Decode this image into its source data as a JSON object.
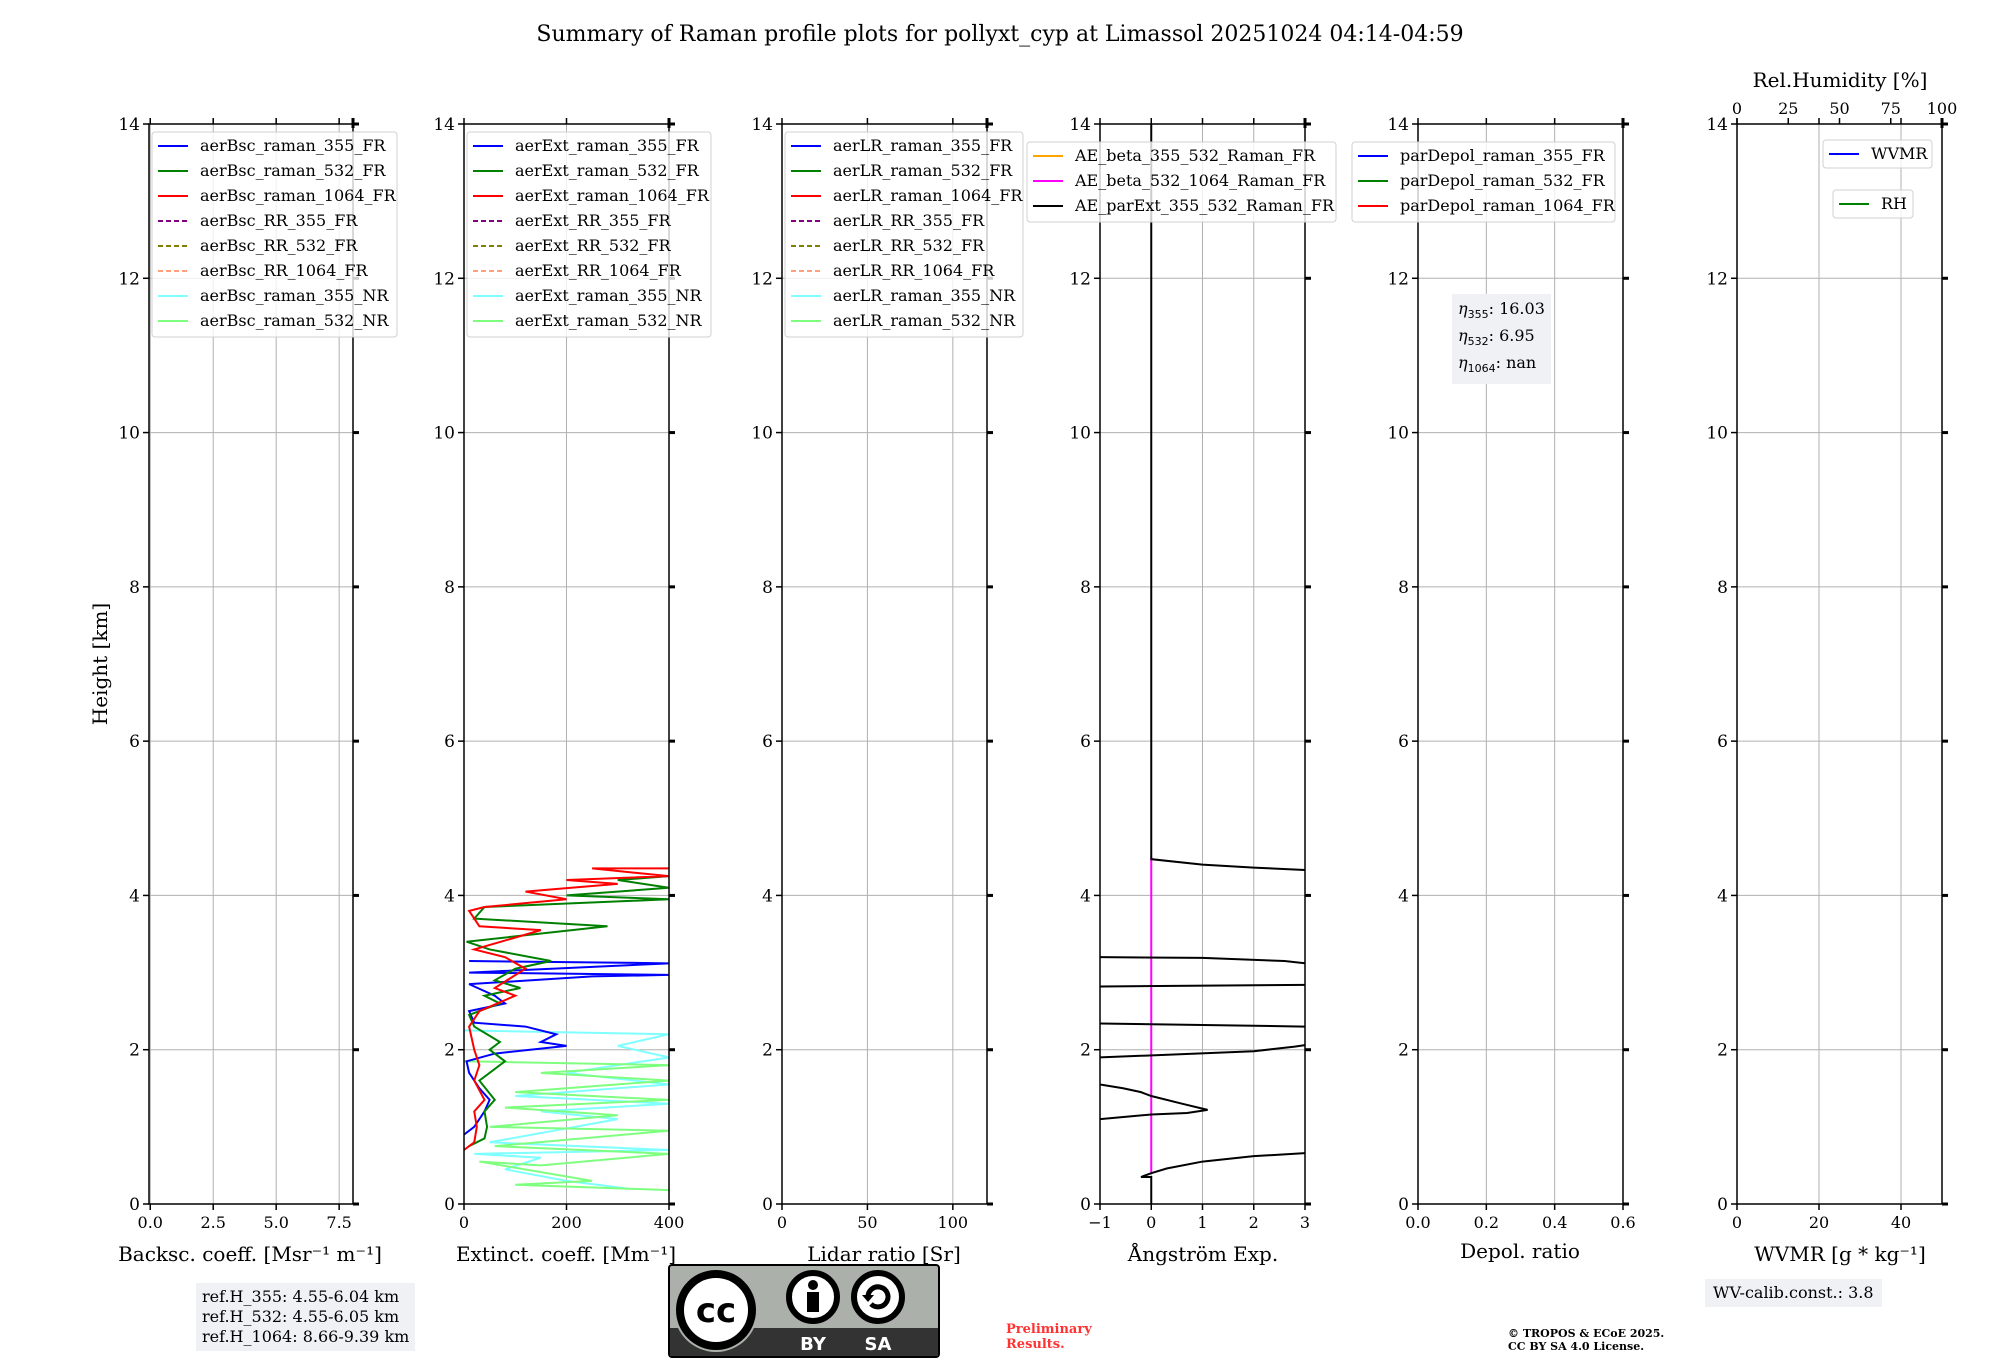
{
  "title": "Summary of Raman profile plots for pollyxt_cyp at Limassol 20251024 04:14-04:59",
  "ylabel": "Height [km]",
  "ref_heights": [
    "ref.H_355: 4.55-6.04 km",
    "ref.H_532: 4.55-6.05 km",
    "ref.H_1064: 8.66-9.39 km"
  ],
  "eta": [
    {
      "sub": "355",
      "value": ": 16.03"
    },
    {
      "sub": "532",
      "value": ": 6.95"
    },
    {
      "sub": "1064",
      "value": ": nan"
    }
  ],
  "eta_symbol": "η",
  "wv_calib": "WV-calib.const.: 3.8",
  "preliminary": [
    "Preliminary",
    "Results."
  ],
  "copyright": [
    "© TROPOS & ECoE 2025.",
    "CC BY SA 4.0 License."
  ],
  "license_logo": {
    "cc": "cc",
    "by": "BY",
    "sa": "SA"
  },
  "rh_axis": {
    "label": "Rel.Humidity [%]",
    "ticks": [
      0,
      25,
      50,
      75,
      100
    ],
    "lim": [
      0,
      100
    ]
  },
  "chart_data": [
    {
      "type": "line",
      "xlabel": "Backsc. coeff. [Msr⁻¹ m⁻¹]",
      "xlim": [
        -0.05,
        8.05
      ],
      "ylim": [
        0,
        14
      ],
      "xticks": [
        0,
        2.5,
        5,
        7.5
      ],
      "xticklabels": [
        "0.0",
        "2.5",
        "5.0",
        "7.5"
      ],
      "yticks": [
        0,
        2,
        4,
        6,
        8,
        10,
        12,
        14
      ],
      "grid": true,
      "legend": "upper-left",
      "legend_entries": [
        {
          "name": "aerBsc_raman_355_FR",
          "color": "#0000ff",
          "dash": false
        },
        {
          "name": "aerBsc_raman_532_FR",
          "color": "#008000",
          "dash": false
        },
        {
          "name": "aerBsc_raman_1064_FR",
          "color": "#ff0000",
          "dash": false
        },
        {
          "name": "aerBsc_RR_355_FR",
          "color": "#800080",
          "dash": true
        },
        {
          "name": "aerBsc_RR_532_FR",
          "color": "#808000",
          "dash": true
        },
        {
          "name": "aerBsc_RR_1064_FR",
          "color": "#ffa07a",
          "dash": true
        },
        {
          "name": "aerBsc_raman_355_NR",
          "color": "#7fffff",
          "dash": false
        },
        {
          "name": "aerBsc_raman_532_NR",
          "color": "#7fff7f",
          "dash": false
        }
      ],
      "series": []
    },
    {
      "type": "line",
      "xlabel": "Extinct. coeff. [Mm⁻¹]",
      "xlim": [
        0,
        400
      ],
      "ylim": [
        0,
        14
      ],
      "xticks": [
        0,
        200,
        400
      ],
      "xticklabels": [
        "0",
        "200",
        "400"
      ],
      "yticks": [
        0,
        2,
        4,
        6,
        8,
        10,
        12,
        14
      ],
      "grid": true,
      "legend": "upper-left",
      "legend_entries": [
        {
          "name": "aerExt_raman_355_FR",
          "color": "#0000ff",
          "dash": false
        },
        {
          "name": "aerExt_raman_532_FR",
          "color": "#008000",
          "dash": false
        },
        {
          "name": "aerExt_raman_1064_FR",
          "color": "#ff0000",
          "dash": false
        },
        {
          "name": "aerExt_RR_355_FR",
          "color": "#800080",
          "dash": true
        },
        {
          "name": "aerExt_RR_532_FR",
          "color": "#808000",
          "dash": true
        },
        {
          "name": "aerExt_RR_1064_FR",
          "color": "#ffa07a",
          "dash": true
        },
        {
          "name": "aerExt_raman_355_NR",
          "color": "#7fffff",
          "dash": false
        },
        {
          "name": "aerExt_raman_532_NR",
          "color": "#7fff7f",
          "dash": false
        }
      ],
      "series": [
        {
          "name": "aerExt_raman_355_NR",
          "color": "#7fffff",
          "points": [
            [
              320,
              0.2
            ],
            [
              200,
              0.3
            ],
            [
              80,
              0.45
            ],
            [
              150,
              0.6
            ],
            [
              20,
              0.65
            ],
            [
              400,
              0.7
            ],
            [
              50,
              0.8
            ],
            [
              300,
              1.1
            ],
            [
              150,
              1.2
            ],
            [
              400,
              1.3
            ],
            [
              100,
              1.4
            ],
            [
              400,
              1.55
            ],
            [
              200,
              1.7
            ],
            [
              400,
              1.9
            ],
            [
              300,
              2.05
            ],
            [
              400,
              2.2
            ],
            [
              0,
              2.25
            ]
          ]
        },
        {
          "name": "aerExt_raman_532_NR",
          "color": "#7fff7f",
          "points": [
            [
              400,
              0.18
            ],
            [
              100,
              0.25
            ],
            [
              250,
              0.3
            ],
            [
              30,
              0.55
            ],
            [
              150,
              0.5
            ],
            [
              400,
              0.65
            ],
            [
              60,
              0.75
            ],
            [
              400,
              0.95
            ],
            [
              50,
              1.0
            ],
            [
              300,
              1.15
            ],
            [
              80,
              1.25
            ],
            [
              400,
              1.35
            ],
            [
              100,
              1.45
            ],
            [
              400,
              1.6
            ],
            [
              150,
              1.7
            ],
            [
              400,
              1.8
            ],
            [
              0,
              1.85
            ]
          ]
        },
        {
          "name": "aerExt_raman_355_FR",
          "color": "#0000ff",
          "points": [
            [
              0,
              0.9
            ],
            [
              20,
              1.0
            ],
            [
              40,
              1.2
            ],
            [
              50,
              1.35
            ],
            [
              30,
              1.5
            ],
            [
              10,
              1.7
            ],
            [
              5,
              1.85
            ],
            [
              60,
              1.95
            ],
            [
              200,
              2.05
            ],
            [
              150,
              2.1
            ],
            [
              180,
              2.2
            ],
            [
              120,
              2.3
            ],
            [
              20,
              2.35
            ],
            [
              10,
              2.5
            ],
            [
              80,
              2.6
            ],
            [
              60,
              2.7
            ],
            [
              10,
              2.85
            ],
            [
              250,
              2.95
            ],
            [
              400,
              2.97
            ],
            [
              10,
              3.0
            ],
            [
              400,
              3.12
            ],
            [
              10,
              3.15
            ]
          ]
        },
        {
          "name": "aerExt_raman_532_FR",
          "color": "#008000",
          "points": [
            [
              10,
              0.75
            ],
            [
              40,
              0.85
            ],
            [
              45,
              1.0
            ],
            [
              40,
              1.2
            ],
            [
              60,
              1.35
            ],
            [
              30,
              1.6
            ],
            [
              80,
              1.85
            ],
            [
              50,
              2.0
            ],
            [
              70,
              2.1
            ],
            [
              20,
              2.3
            ],
            [
              10,
              2.45
            ],
            [
              70,
              2.6
            ],
            [
              40,
              2.7
            ],
            [
              110,
              2.8
            ],
            [
              60,
              2.9
            ],
            [
              100,
              3.05
            ],
            [
              170,
              3.15
            ],
            [
              50,
              3.3
            ],
            [
              5,
              3.4
            ],
            [
              280,
              3.6
            ],
            [
              20,
              3.7
            ],
            [
              40,
              3.85
            ],
            [
              400,
              3.95
            ],
            [
              200,
              4.0
            ],
            [
              400,
              4.1
            ],
            [
              300,
              4.2
            ],
            [
              400,
              4.25
            ]
          ]
        },
        {
          "name": "aerExt_raman_1064_FR",
          "color": "#ff0000",
          "points": [
            [
              0,
              0.7
            ],
            [
              20,
              0.8
            ],
            [
              25,
              1.0
            ],
            [
              20,
              1.2
            ],
            [
              40,
              1.35
            ],
            [
              20,
              1.6
            ],
            [
              30,
              1.8
            ],
            [
              20,
              2.0
            ],
            [
              10,
              2.3
            ],
            [
              30,
              2.5
            ],
            [
              100,
              2.7
            ],
            [
              60,
              2.8
            ],
            [
              120,
              3.05
            ],
            [
              80,
              3.2
            ],
            [
              20,
              3.3
            ],
            [
              150,
              3.55
            ],
            [
              30,
              3.6
            ],
            [
              10,
              3.8
            ],
            [
              40,
              3.85
            ],
            [
              200,
              3.95
            ],
            [
              120,
              4.05
            ],
            [
              300,
              4.15
            ],
            [
              200,
              4.2
            ],
            [
              400,
              4.25
            ],
            [
              250,
              4.35
            ],
            [
              400,
              4.35
            ]
          ]
        }
      ]
    },
    {
      "type": "line",
      "xlabel": "Lidar ratio [Sr]",
      "xlim": [
        0,
        120
      ],
      "ylim": [
        0,
        14
      ],
      "xticks": [
        0,
        50,
        100
      ],
      "xticklabels": [
        "0",
        "50",
        "100"
      ],
      "yticks": [
        0,
        2,
        4,
        6,
        8,
        10,
        12,
        14
      ],
      "grid": true,
      "legend": "upper-left",
      "legend_entries": [
        {
          "name": "aerLR_raman_355_FR",
          "color": "#0000ff",
          "dash": false
        },
        {
          "name": "aerLR_raman_532_FR",
          "color": "#008000",
          "dash": false
        },
        {
          "name": "aerLR_raman_1064_FR",
          "color": "#ff0000",
          "dash": false
        },
        {
          "name": "aerLR_RR_355_FR",
          "color": "#800080",
          "dash": true
        },
        {
          "name": "aerLR_RR_532_FR",
          "color": "#808000",
          "dash": true
        },
        {
          "name": "aerLR_RR_1064_FR",
          "color": "#ffa07a",
          "dash": true
        },
        {
          "name": "aerLR_raman_355_NR",
          "color": "#7fffff",
          "dash": false
        },
        {
          "name": "aerLR_raman_532_NR",
          "color": "#7fff7f",
          "dash": false
        }
      ],
      "series": []
    },
    {
      "type": "line",
      "xlabel": "Ångström Exp.",
      "xlim": [
        -1,
        3
      ],
      "ylim": [
        0,
        14
      ],
      "xticks": [
        -1,
        0,
        1,
        2,
        3
      ],
      "xticklabels": [
        "−1",
        "0",
        "1",
        "2",
        "3"
      ],
      "yticks": [
        0,
        2,
        4,
        6,
        8,
        10,
        12,
        14
      ],
      "grid": true,
      "legend": "upper-center",
      "legend_entries": [
        {
          "name": "AE_beta_355_532_Raman_FR",
          "color": "#ffa500",
          "dash": false
        },
        {
          "name": "AE_beta_532_1064_Raman_FR",
          "color": "#ff00ff",
          "dash": false
        },
        {
          "name": "AE_parExt_355_532_Raman_FR",
          "color": "#000000",
          "dash": false
        }
      ],
      "series": [
        {
          "name": "AE_beta_532_1064_Raman_FR",
          "color": "#ff00ff",
          "points": [
            [
              0,
              0.4
            ],
            [
              0,
              4.5
            ]
          ]
        },
        {
          "name": "AE_parExt_355_532_Raman_FR",
          "color": "#000000",
          "points": [
            [
              0,
              14
            ],
            [
              0,
              4.47
            ],
            [
              1,
              4.4
            ],
            [
              2,
              4.36
            ],
            [
              3,
              4.33
            ]
          ]
        },
        {
          "name": "AE_parExt_355_532_Raman_FR",
          "color": "#000000",
          "points": [
            [
              -1,
              3.2
            ],
            [
              1,
              3.19
            ],
            [
              2.6,
              3.15
            ],
            [
              3,
              3.12
            ]
          ]
        },
        {
          "name": "AE_parExt_355_532_Raman_FR",
          "color": "#000000",
          "points": [
            [
              -1,
              2.82
            ],
            [
              3,
              2.84
            ]
          ]
        },
        {
          "name": "AE_parExt_355_532_Raman_FR",
          "color": "#000000",
          "points": [
            [
              -1,
              2.34
            ],
            [
              3,
              2.3
            ]
          ]
        },
        {
          "name": "AE_parExt_355_532_Raman_FR",
          "color": "#000000",
          "points": [
            [
              -1,
              1.9
            ],
            [
              2,
              1.98
            ],
            [
              2.8,
              2.04
            ],
            [
              3,
              2.06
            ]
          ]
        },
        {
          "name": "AE_parExt_355_532_Raman_FR",
          "color": "#000000",
          "points": [
            [
              -1,
              1.55
            ],
            [
              -0.55,
              1.5
            ],
            [
              -0.2,
              1.45
            ],
            [
              0,
              1.4
            ],
            [
              0.6,
              1.3
            ],
            [
              1.1,
              1.22
            ],
            [
              0.7,
              1.18
            ],
            [
              0,
              1.16
            ],
            [
              -1,
              1.1
            ]
          ]
        },
        {
          "name": "AE_parExt_355_532_Raman_FR",
          "color": "#000000",
          "points": [
            [
              3,
              0.66
            ],
            [
              2,
              0.62
            ],
            [
              1,
              0.55
            ],
            [
              0.3,
              0.46
            ],
            [
              0,
              0.4
            ],
            [
              -0.2,
              0.35
            ],
            [
              0,
              0.35
            ],
            [
              0,
              0
            ]
          ]
        }
      ]
    },
    {
      "type": "line",
      "xlabel": "Depol. ratio",
      "xlim": [
        0,
        0.6
      ],
      "ylim": [
        0,
        14
      ],
      "xticks": [
        0,
        0.2,
        0.4,
        0.6
      ],
      "xticklabels": [
        "0.0",
        "0.2",
        "0.4",
        "0.6"
      ],
      "yticks": [
        0,
        2,
        4,
        6,
        8,
        10,
        12,
        14
      ],
      "grid": true,
      "legend": "upper-left",
      "legend_entries": [
        {
          "name": "parDepol_raman_355_FR",
          "color": "#0000ff",
          "dash": false
        },
        {
          "name": "parDepol_raman_532_FR",
          "color": "#008000",
          "dash": false
        },
        {
          "name": "parDepol_raman_1064_FR",
          "color": "#ff0000",
          "dash": false
        }
      ],
      "series": []
    },
    {
      "type": "line",
      "xlabel": "WVMR [g * kg⁻¹]",
      "xlim": [
        0,
        50
      ],
      "ylim": [
        0,
        14
      ],
      "xticks": [
        0,
        20,
        40
      ],
      "xticklabels": [
        "0",
        "20",
        "40"
      ],
      "yticks": [
        0,
        2,
        4,
        6,
        8,
        10,
        12,
        14
      ],
      "grid": true,
      "legend": "upper-right",
      "legend_entries": [
        {
          "name": "WVMR",
          "color": "#0000ff",
          "dash": false
        },
        {
          "name": "RH",
          "color": "#008000",
          "dash": false
        }
      ],
      "series": []
    }
  ]
}
